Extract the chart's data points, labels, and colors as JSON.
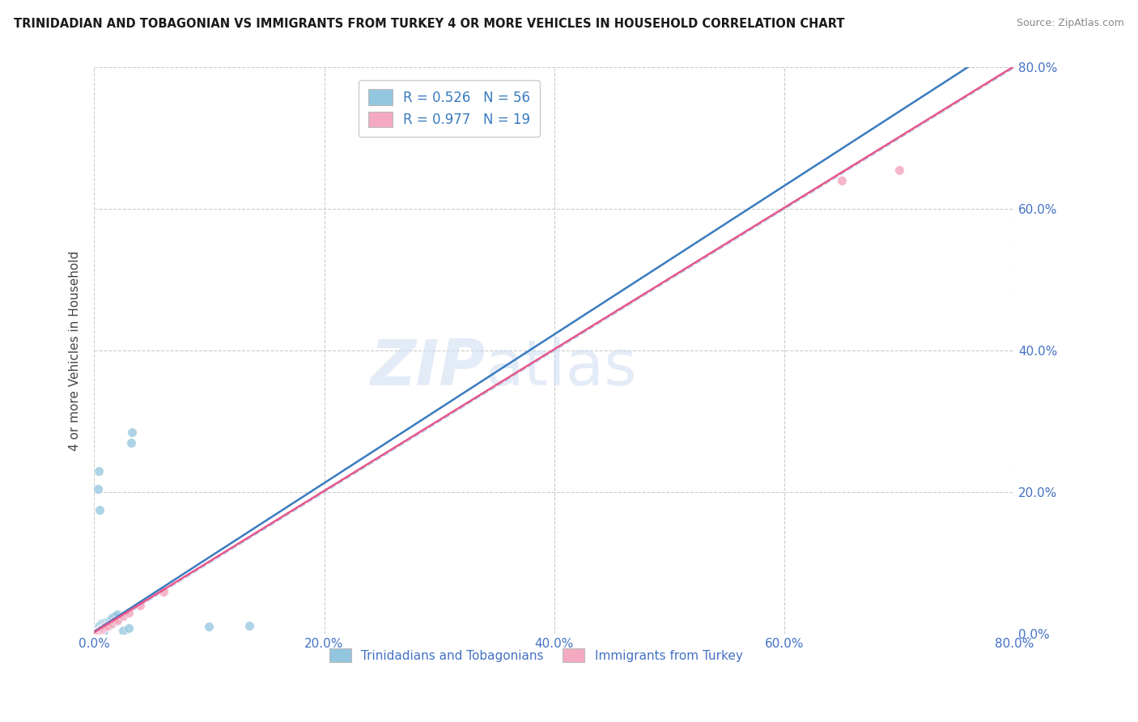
{
  "title": "TRINIDADIAN AND TOBAGONIAN VS IMMIGRANTS FROM TURKEY 4 OR MORE VEHICLES IN HOUSEHOLD CORRELATION CHART",
  "source": "Source: ZipAtlas.com",
  "ylabel": "4 or more Vehicles in Household",
  "xlim": [
    0,
    0.8
  ],
  "ylim": [
    0,
    0.8
  ],
  "grid_vals": [
    0.0,
    0.2,
    0.4,
    0.6,
    0.8
  ],
  "legend_label_1": "Trinidadians and Tobagonians",
  "legend_label_2": "Immigrants from Turkey",
  "legend_R1": "R = 0.526",
  "legend_N1": "N = 56",
  "legend_R2": "R = 0.977",
  "legend_N2": "N = 19",
  "color_blue": "#92c5de",
  "color_pink": "#f4a9c0",
  "color_line_blue": "#3a7bbf",
  "color_line_pink": "#e8558a",
  "color_diagonal": "#b8cfe8",
  "blue_line_slope": 1.05,
  "blue_line_intercept": 0.003,
  "pink_line_slope": 1.0,
  "pink_line_intercept": 0.002,
  "blue_x": [
    0.001,
    0.002,
    0.002,
    0.003,
    0.003,
    0.003,
    0.004,
    0.004,
    0.004,
    0.005,
    0.005,
    0.005,
    0.006,
    0.006,
    0.007,
    0.007,
    0.007,
    0.008,
    0.008,
    0.009,
    0.01,
    0.01,
    0.011,
    0.012,
    0.013,
    0.014,
    0.015,
    0.016,
    0.018,
    0.02,
    0.002,
    0.003,
    0.004,
    0.005,
    0.006,
    0.007,
    0.008,
    0.009,
    0.01,
    0.012,
    0.014,
    0.016,
    0.018,
    0.02,
    0.025,
    0.03,
    0.032,
    0.033,
    0.1,
    0.135,
    0.003,
    0.004,
    0.005,
    0.003,
    0.004,
    0.008
  ],
  "blue_y": [
    0.002,
    0.003,
    0.005,
    0.004,
    0.006,
    0.008,
    0.005,
    0.007,
    0.01,
    0.006,
    0.008,
    0.012,
    0.007,
    0.01,
    0.008,
    0.012,
    0.015,
    0.01,
    0.014,
    0.012,
    0.013,
    0.016,
    0.015,
    0.017,
    0.018,
    0.02,
    0.022,
    0.023,
    0.025,
    0.028,
    0.002,
    0.003,
    0.004,
    0.005,
    0.004,
    0.006,
    0.007,
    0.008,
    0.009,
    0.011,
    0.013,
    0.015,
    0.017,
    0.018,
    0.005,
    0.008,
    0.27,
    0.285,
    0.01,
    0.012,
    0.205,
    0.23,
    0.175,
    0.002,
    0.001,
    0.003
  ],
  "pink_x": [
    0.001,
    0.002,
    0.003,
    0.004,
    0.005,
    0.006,
    0.007,
    0.008,
    0.01,
    0.012,
    0.015,
    0.018,
    0.02,
    0.025,
    0.03,
    0.04,
    0.06,
    0.65,
    0.7
  ],
  "pink_y": [
    0.001,
    0.002,
    0.003,
    0.004,
    0.005,
    0.006,
    0.007,
    0.008,
    0.01,
    0.012,
    0.015,
    0.018,
    0.02,
    0.025,
    0.03,
    0.04,
    0.06,
    0.64,
    0.655
  ]
}
